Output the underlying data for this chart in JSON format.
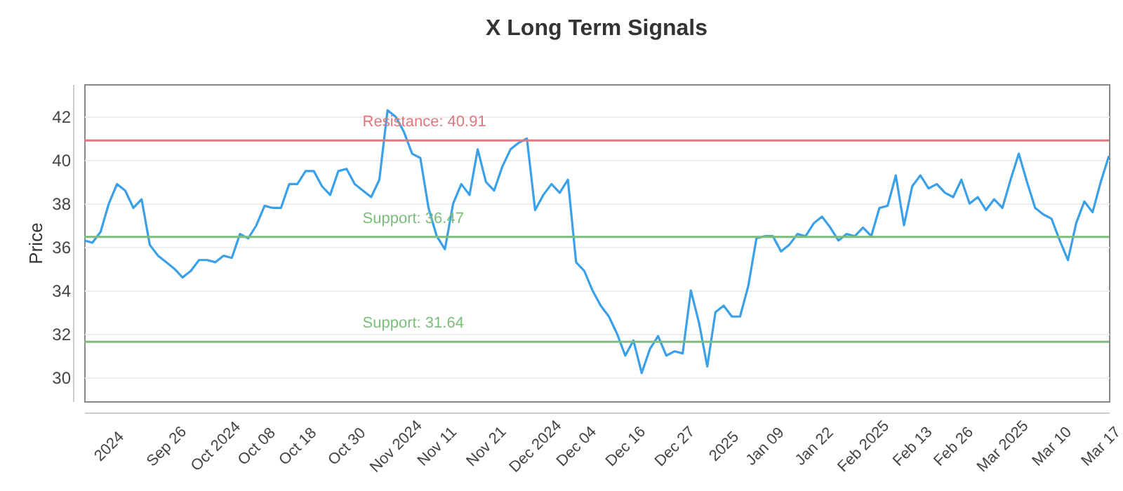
{
  "chart_data": {
    "type": "line",
    "title": "X Long Term Signals",
    "ylabel": "Price",
    "categories": [
      null,
      null,
      null,
      "2024",
      null,
      null,
      null,
      null,
      null,
      null,
      "Sep 26",
      null,
      null,
      null,
      null,
      null,
      "Oct 2024",
      null,
      null,
      null,
      null,
      "Oct 08",
      null,
      null,
      null,
      null,
      "Oct 18",
      null,
      null,
      null,
      null,
      null,
      "Oct 30",
      null,
      null,
      null,
      null,
      null,
      "Nov 2024",
      null,
      null,
      null,
      null,
      "Nov 11",
      null,
      null,
      null,
      null,
      null,
      "Nov 21",
      null,
      null,
      null,
      null,
      null,
      "Dec 2024",
      null,
      null,
      null,
      null,
      "Dec 04",
      null,
      null,
      null,
      null,
      null,
      "Dec 16",
      null,
      null,
      null,
      null,
      null,
      "Dec 27",
      null,
      null,
      null,
      null,
      null,
      "2025",
      null,
      null,
      null,
      null,
      "Jan 09",
      null,
      null,
      null,
      null,
      null,
      "Jan 22",
      null,
      null,
      null,
      null,
      null,
      "Feb 2025",
      null,
      null,
      null,
      null,
      null,
      "Feb 13",
      null,
      null,
      null,
      null,
      "Feb 26",
      null,
      null,
      null,
      null,
      null,
      "Mar 2025",
      null,
      null,
      null,
      null,
      null,
      "Mar 10",
      null,
      null,
      null,
      null,
      null,
      "Mar 17",
      null
    ],
    "series": [
      {
        "color": "#3aa0e8",
        "values": [
          36.3,
          36.2,
          36.7,
          38.0,
          38.9,
          38.6,
          37.8,
          38.2,
          36.1,
          35.6,
          35.3,
          35.0,
          34.6,
          34.9,
          35.4,
          35.4,
          35.3,
          35.6,
          35.5,
          36.6,
          36.4,
          37.0,
          37.9,
          37.8,
          37.8,
          38.9,
          38.9,
          39.5,
          39.5,
          38.8,
          38.4,
          39.5,
          39.6,
          38.9,
          38.6,
          38.3,
          39.1,
          42.3,
          42.0,
          41.3,
          40.3,
          40.1,
          37.8,
          36.5,
          35.9,
          38.0,
          38.9,
          38.4,
          40.5,
          39.0,
          38.6,
          39.7,
          40.5,
          40.8,
          41.0,
          37.7,
          38.4,
          38.9,
          38.5,
          39.1,
          35.3,
          34.9,
          34.0,
          33.3,
          32.8,
          32.0,
          31.0,
          31.7,
          30.2,
          31.3,
          31.9,
          31.0,
          31.2,
          31.1,
          34.0,
          32.5,
          30.5,
          33.0,
          33.3,
          32.8,
          32.8,
          34.2,
          36.4,
          36.5,
          36.5,
          35.8,
          36.1,
          36.6,
          36.5,
          37.1,
          37.4,
          36.9,
          36.3,
          36.6,
          36.5,
          36.9,
          36.5,
          37.8,
          37.9,
          39.3,
          37.0,
          38.8,
          39.3,
          38.7,
          38.9,
          38.5,
          38.3,
          39.1,
          38.0,
          38.3,
          37.7,
          38.2,
          37.8,
          39.1,
          40.3,
          39.0,
          37.8,
          37.5,
          37.3,
          36.3,
          35.4,
          37.1,
          38.1,
          37.6,
          39.0,
          40.2
        ]
      }
    ],
    "ylim": [
      28.9,
      43.5
    ],
    "yticks": [
      30,
      32,
      34,
      36,
      38,
      40,
      42
    ],
    "grid": "y",
    "ref_lines": [
      {
        "axis": "y",
        "value": 40.91,
        "label": "Resistance: 40.91",
        "color": "#e2787c"
      },
      {
        "axis": "y",
        "value": 36.47,
        "label": "Support: 36.47",
        "color": "#7cbd7c"
      },
      {
        "axis": "y",
        "value": 31.64,
        "label": "Support: 31.64",
        "color": "#7cbd7c"
      }
    ]
  }
}
